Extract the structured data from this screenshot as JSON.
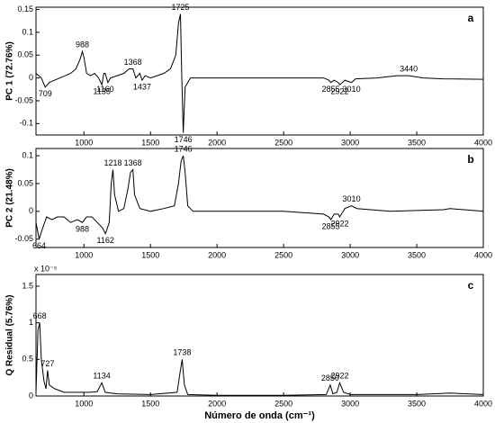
{
  "chart_data": [
    {
      "type": "line",
      "ylabel": "PC 1 (72.76%)",
      "panel_label": "a",
      "xlim": [
        640,
        4000
      ],
      "xticks": [
        1000,
        1500,
        2000,
        2500,
        3000,
        3500,
        4000
      ],
      "ylim": [
        -0.125,
        0.155
      ],
      "yticks": [
        -0.1,
        -0.05,
        0,
        0.05,
        0.1,
        0.15
      ],
      "x": [
        640,
        680,
        709,
        740,
        780,
        820,
        860,
        900,
        940,
        970,
        988,
        1000,
        1020,
        1050,
        1080,
        1110,
        1135,
        1150,
        1160,
        1180,
        1200,
        1250,
        1300,
        1340,
        1368,
        1390,
        1420,
        1437,
        1460,
        1500,
        1550,
        1600,
        1650,
        1690,
        1710,
        1725,
        1735,
        1746,
        1760,
        1800,
        2000,
        2500,
        2800,
        2840,
        2855,
        2880,
        2910,
        2922,
        2960,
        3010,
        3040,
        3200,
        3350,
        3440,
        3550,
        3700,
        4000
      ],
      "series": [
        {
          "color": "#000000",
          "values": [
            0.01,
            0.0,
            -0.02,
            -0.01,
            -0.005,
            0.0,
            0.005,
            0.01,
            0.02,
            0.04,
            0.058,
            0.045,
            0.01,
            0.005,
            0.01,
            0.0,
            -0.015,
            0.01,
            0.01,
            -0.01,
            0.0,
            0.005,
            0.01,
            0.02,
            0.02,
            0.0,
            0.01,
            -0.005,
            0.005,
            0.0,
            0.005,
            0.01,
            0.02,
            0.05,
            0.12,
            0.14,
            0.0,
            -0.12,
            -0.02,
            0.0,
            0.0,
            0.0,
            0.0,
            -0.005,
            -0.01,
            -0.005,
            -0.01,
            -0.015,
            -0.005,
            -0.01,
            -0.002,
            0.0,
            0.005,
            0.005,
            0.0,
            -0.002,
            -0.003
          ]
        }
      ],
      "annotations": [
        {
          "text": "709",
          "x": 709,
          "y": -0.02
        },
        {
          "text": "988",
          "x": 988,
          "y": 0.058
        },
        {
          "text": "1135",
          "x": 1135,
          "y": -0.015
        },
        {
          "text": "1160",
          "x": 1160,
          "y": -0.01
        },
        {
          "text": "1368",
          "x": 1368,
          "y": 0.02
        },
        {
          "text": "1437",
          "x": 1437,
          "y": -0.005
        },
        {
          "text": "1725",
          "x": 1725,
          "y": 0.14
        },
        {
          "text": "1746",
          "x": 1746,
          "y": -0.12
        },
        {
          "text": "2855",
          "x": 2855,
          "y": -0.01
        },
        {
          "text": "2922",
          "x": 2922,
          "y": -0.015
        },
        {
          "text": "3010",
          "x": 3010,
          "y": -0.01
        },
        {
          "text": "3440",
          "x": 3440,
          "y": 0.005
        }
      ]
    },
    {
      "type": "line",
      "ylabel": "PC 2 (21.48%)",
      "panel_label": "b",
      "xlim": [
        640,
        4000
      ],
      "xticks": [
        1000,
        1500,
        2000,
        2500,
        3000,
        3500,
        4000
      ],
      "ylim": [
        -0.065,
        0.113
      ],
      "yticks": [
        -0.05,
        0,
        0.05,
        0.1
      ],
      "x": [
        640,
        664,
        690,
        720,
        760,
        800,
        850,
        900,
        950,
        988,
        1020,
        1060,
        1100,
        1140,
        1162,
        1190,
        1205,
        1218,
        1230,
        1260,
        1300,
        1330,
        1350,
        1368,
        1380,
        1420,
        1500,
        1600,
        1680,
        1710,
        1730,
        1746,
        1760,
        1780,
        1820,
        2000,
        2500,
        2800,
        2840,
        2855,
        2880,
        2910,
        2922,
        2960,
        3010,
        3050,
        3300,
        3700,
        3750,
        4000
      ],
      "series": [
        {
          "color": "#000000",
          "values": [
            -0.02,
            -0.05,
            -0.03,
            -0.01,
            -0.015,
            -0.01,
            -0.01,
            -0.02,
            -0.015,
            -0.02,
            -0.01,
            -0.01,
            -0.02,
            -0.03,
            -0.04,
            -0.02,
            0.05,
            0.075,
            0.03,
            0.0,
            0.005,
            0.04,
            0.07,
            0.075,
            0.03,
            0.005,
            0.0,
            0.005,
            0.01,
            0.05,
            0.09,
            0.1,
            0.07,
            0.01,
            0.0,
            0.0,
            0.0,
            -0.005,
            -0.01,
            -0.015,
            -0.005,
            -0.005,
            -0.01,
            0.005,
            0.01,
            0.005,
            0.0,
            0.003,
            0.005,
            0.0
          ]
        }
      ],
      "annotations": [
        {
          "text": "664",
          "x": 664,
          "y": -0.05
        },
        {
          "text": "988",
          "x": 988,
          "y": -0.02
        },
        {
          "text": "1162",
          "x": 1162,
          "y": -0.04
        },
        {
          "text": "1218",
          "x": 1218,
          "y": 0.075
        },
        {
          "text": "1368",
          "x": 1368,
          "y": 0.075
        },
        {
          "text": "1746",
          "x": 1746,
          "y": 0.1
        },
        {
          "text": "2855",
          "x": 2855,
          "y": -0.015
        },
        {
          "text": "2922",
          "x": 2922,
          "y": -0.01
        },
        {
          "text": "3010",
          "x": 3010,
          "y": 0.01
        }
      ]
    },
    {
      "type": "line",
      "ylabel": "Q Residual  (5.76%)",
      "panel_label": "c",
      "multiplier": "x 10⁻⁵",
      "xlabel": "Número de onda (cm⁻¹)",
      "xlim": [
        640,
        4000
      ],
      "xticks": [
        1000,
        1500,
        2000,
        2500,
        3000,
        3500,
        4000
      ],
      "ylim": [
        0,
        1.66
      ],
      "yticks": [
        0,
        0.5,
        1,
        1.5
      ],
      "x": [
        640,
        655,
        668,
        680,
        700,
        715,
        727,
        740,
        780,
        850,
        950,
        1050,
        1100,
        1134,
        1160,
        1250,
        1500,
        1700,
        1720,
        1738,
        1755,
        1780,
        2000,
        2500,
        2820,
        2850,
        2870,
        2900,
        2922,
        2950,
        3000,
        3500,
        3750,
        4000
      ],
      "series": [
        {
          "color": "#000000",
          "values": [
            0.05,
            0.9,
            1.0,
            0.5,
            0.2,
            0.1,
            0.35,
            0.15,
            0.1,
            0.05,
            0.05,
            0.05,
            0.06,
            0.18,
            0.05,
            0.03,
            0.02,
            0.05,
            0.3,
            0.5,
            0.15,
            0.02,
            0.01,
            0.01,
            0.02,
            0.15,
            0.03,
            0.05,
            0.18,
            0.05,
            0.02,
            0.02,
            0.04,
            0.02
          ]
        }
      ],
      "annotations": [
        {
          "text": "668",
          "x": 668,
          "y": 1.0
        },
        {
          "text": "727",
          "x": 727,
          "y": 0.35
        },
        {
          "text": "1134",
          "x": 1134,
          "y": 0.18
        },
        {
          "text": "1738",
          "x": 1738,
          "y": 0.5
        },
        {
          "text": "2850",
          "x": 2850,
          "y": 0.15
        },
        {
          "text": "2922",
          "x": 2922,
          "y": 0.18
        }
      ]
    }
  ]
}
